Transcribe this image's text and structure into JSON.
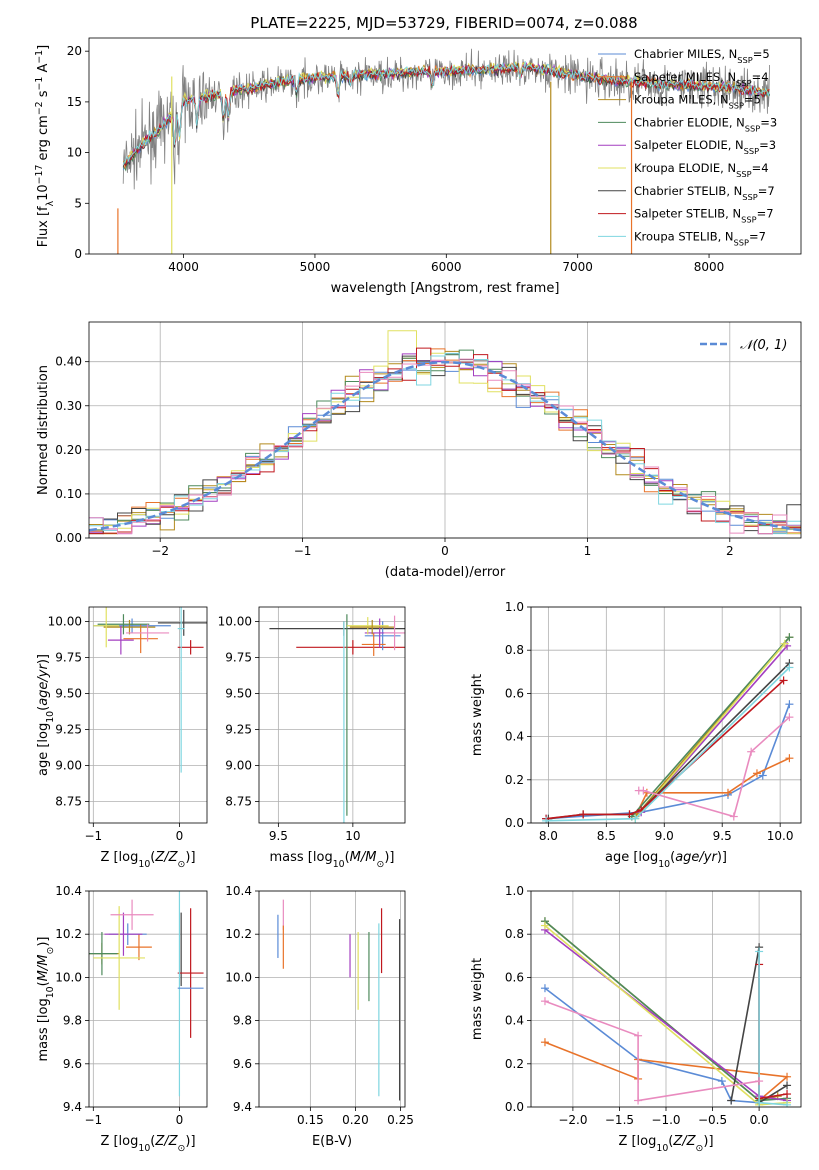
{
  "figure_title": "PLATE=2225, MJD=53729, FIBERID=0074, z=0.088",
  "chart_data": [
    {
      "id": "spectrum",
      "type": "line",
      "title": "PLATE=2225, MJD=53729, FIBERID=0074, z=0.088",
      "xlabel": "wavelength [Angstrom, rest frame]",
      "ylabel": "Flux [f_λ 10^-17 erg cm^-2 s^-1 A^-1]",
      "xlim": [
        3280,
        8700
      ],
      "ylim": [
        0,
        21.3
      ],
      "xticks": [
        4000,
        5000,
        6000,
        7000,
        8000
      ],
      "yticks": [
        0,
        5,
        10,
        15,
        20
      ],
      "grid": false,
      "legend_position": "right",
      "legend": [
        {
          "name": "Chabrier MILES, N_SSP=5",
          "color": "#5b8bd6"
        },
        {
          "name": "Salpeter MILES, N_SSP=4",
          "color": "#e8732a"
        },
        {
          "name": "Kroupa MILES, N_SSP=5",
          "color": "#b38b1e"
        },
        {
          "name": "Chabrier ELODIE, N_SSP=3",
          "color": "#4e8a5c"
        },
        {
          "name": "Salpeter ELODIE, N_SSP=3",
          "color": "#a33fc0"
        },
        {
          "name": "Kroupa ELODIE, N_SSP=4",
          "color": "#e0e060"
        },
        {
          "name": "Chabrier STELIB, N_SSP=7",
          "color": "#444444"
        },
        {
          "name": "Salpeter STELIB, N_SSP=7",
          "color": "#c0181e"
        },
        {
          "name": "Kroupa STELIB, N_SSP=7",
          "color": "#7fd6e0"
        }
      ],
      "data_color": "#808080",
      "continuum": [
        [
          3540,
          8.5
        ],
        [
          3600,
          9.5
        ],
        [
          3700,
          11.0
        ],
        [
          3800,
          12.0
        ],
        [
          3900,
          13.5
        ],
        [
          4000,
          15.0
        ],
        [
          4200,
          15.5
        ],
        [
          4400,
          16.0
        ],
        [
          4600,
          16.5
        ],
        [
          4800,
          17.0
        ],
        [
          5000,
          17.3
        ],
        [
          5400,
          17.6
        ],
        [
          5800,
          17.9
        ],
        [
          6200,
          18.0
        ],
        [
          6600,
          18.4
        ],
        [
          6800,
          18.0
        ],
        [
          7000,
          17.5
        ],
        [
          7400,
          16.9
        ],
        [
          7800,
          16.6
        ],
        [
          8200,
          16.3
        ],
        [
          8450,
          15.8
        ]
      ],
      "model_extra_lines": [
        {
          "color": "#e0e060",
          "x": 3910,
          "y": [
            0,
            17.5
          ]
        },
        {
          "color": "#b38b1e",
          "x": 6795,
          "y": [
            0,
            17.0
          ]
        },
        {
          "color": "#e8732a",
          "x": 7410,
          "y": [
            0,
            17.0
          ]
        },
        {
          "color": "#e8732a",
          "x": 3500,
          "y": [
            0,
            4.5
          ]
        }
      ]
    },
    {
      "id": "residuals",
      "type": "histogram",
      "xlabel": "(data-model)/error",
      "ylabel": "Normed distribution",
      "xlim": [
        -2.5,
        2.5
      ],
      "ylim": [
        0,
        0.49
      ],
      "xticks": [
        -2,
        -1,
        0,
        1,
        2
      ],
      "yticks": [
        0.0,
        0.1,
        0.2,
        0.3,
        0.4
      ],
      "grid": true,
      "legend_position": "top-right",
      "reference_curve": {
        "name": "𝒩(0, 1)",
        "color": "#5b8bd6"
      },
      "bin_width": 0.1,
      "series_colors": [
        "#5b8bd6",
        "#e8732a",
        "#b38b1e",
        "#4e8a5c",
        "#a33fc0",
        "#e0e060",
        "#444444",
        "#c0181e",
        "#7fd6e0",
        "#e98bbf"
      ]
    },
    {
      "id": "age-vs-Z",
      "type": "scatter",
      "xlabel": "Z [log10(Z/Z⊙)]",
      "ylabel": "age [log10(age/yr)]",
      "xlim": [
        -1.05,
        0.32
      ],
      "ylim": [
        8.6,
        10.1
      ],
      "xticks": [
        -1,
        0
      ],
      "yticks": [
        8.75,
        9.0,
        9.25,
        9.5,
        9.75,
        10.0
      ],
      "grid": true,
      "points": [
        {
          "color": "#5b8bd6",
          "x": -0.55,
          "y": 9.97,
          "xerr": 0.45,
          "yerr": 0.05
        },
        {
          "color": "#e8732a",
          "x": -0.45,
          "y": 9.88,
          "xerr": 0.2,
          "yerr": 0.1
        },
        {
          "color": "#b38b1e",
          "x": -0.58,
          "y": 9.96,
          "xerr": 0.3,
          "yerr": 0.05
        },
        {
          "color": "#4e8a5c",
          "x": -0.65,
          "y": 9.98,
          "xerr": 0.3,
          "yerr": 0.07
        },
        {
          "color": "#a33fc0",
          "x": -0.68,
          "y": 9.87,
          "xerr": 0.15,
          "yerr": 0.1
        },
        {
          "color": "#e0e060",
          "x": -0.85,
          "y": 9.97,
          "xerr": 0.15,
          "yerr": 0.15
        },
        {
          "color": "#444444",
          "x": 0.05,
          "y": 9.99,
          "xerr": 0.3,
          "yerr": 0.09
        },
        {
          "color": "#c0181e",
          "x": 0.13,
          "y": 9.82,
          "xerr": 0.15,
          "yerr": 0.05
        },
        {
          "color": "#7fd6e0",
          "x": 0.02,
          "y": 9.95,
          "xerr": 0.04,
          "yerr": 0.3
        },
        {
          "color": "#7fd6e0",
          "x": 0.02,
          "y": 9.3,
          "xerr": 0.0,
          "yerr": 0.35
        },
        {
          "color": "#e98bbf",
          "x": -0.37,
          "y": 9.92,
          "xerr": 0.25,
          "yerr": 0.06
        }
      ]
    },
    {
      "id": "age-vs-mass",
      "type": "scatter",
      "xlabel": "mass [log10(M/M⊙)]",
      "ylabel": "",
      "xlim": [
        9.37,
        10.35
      ],
      "ylim": [
        8.6,
        10.1
      ],
      "xticks": [
        9.5,
        10.0
      ],
      "yticks": [
        8.75,
        9.0,
        9.25,
        9.5,
        9.75,
        10.0
      ],
      "grid": true,
      "points": [
        {
          "color": "#444444",
          "x": 9.94,
          "y": 9.95,
          "xerr": 0.5,
          "yerr": 0.05
        },
        {
          "color": "#c0181e",
          "x": 10.0,
          "y": 9.82,
          "xerr": 0.38,
          "yerr": 0.05
        },
        {
          "color": "#4e8a5c",
          "x": 9.96,
          "y": 9.35,
          "xerr": 0.0,
          "yerr": 0.7
        },
        {
          "color": "#5b8bd6",
          "x": 10.2,
          "y": 9.9,
          "xerr": 0.12,
          "yerr": 0.1
        },
        {
          "color": "#e8732a",
          "x": 10.14,
          "y": 9.84,
          "xerr": 0.08,
          "yerr": 0.08
        },
        {
          "color": "#a33fc0",
          "x": 10.18,
          "y": 9.92,
          "xerr": 0.1,
          "yerr": 0.1
        },
        {
          "color": "#e0e060",
          "x": 10.1,
          "y": 9.97,
          "xerr": 0.14,
          "yerr": 0.06
        },
        {
          "color": "#b38b1e",
          "x": 10.13,
          "y": 9.96,
          "xerr": 0.15,
          "yerr": 0.05
        },
        {
          "color": "#e98bbf",
          "x": 10.28,
          "y": 9.92,
          "xerr": 0.07,
          "yerr": 0.12
        },
        {
          "color": "#7fd6e0",
          "x": 9.94,
          "y": 9.3,
          "xerr": 0.0,
          "yerr": 0.7
        }
      ]
    },
    {
      "id": "mass-weight-vs-age",
      "type": "line",
      "xlabel": "age [log10(age/yr)]",
      "ylabel": "mass weight",
      "xlim": [
        7.85,
        10.18
      ],
      "ylim": [
        0,
        1.0
      ],
      "xticks": [
        8.0,
        8.5,
        9.0,
        9.5,
        10.0
      ],
      "yticks": [
        0.0,
        0.2,
        0.4,
        0.6,
        0.8,
        1.0
      ],
      "grid": true,
      "series": [
        {
          "color": "#5b8bd6",
          "x": [
            7.98,
            8.8,
            9.55,
            9.85,
            10.08
          ],
          "y": [
            0.02,
            0.05,
            0.13,
            0.22,
            0.55
          ]
        },
        {
          "color": "#e8732a",
          "x": [
            8.75,
            8.85,
            9.55,
            9.8,
            10.08
          ],
          "y": [
            0.03,
            0.14,
            0.14,
            0.23,
            0.3
          ]
        },
        {
          "color": "#b38b1e",
          "x": [
            8.75,
            10.08
          ],
          "y": [
            0.03,
            0.86
          ]
        },
        {
          "color": "#4e8a5c",
          "x": [
            8.72,
            10.08
          ],
          "y": [
            0.03,
            0.86
          ]
        },
        {
          "color": "#a33fc0",
          "x": [
            8.8,
            10.06
          ],
          "y": [
            0.05,
            0.82
          ]
        },
        {
          "color": "#e0e060",
          "x": [
            8.75,
            10.04
          ],
          "y": [
            0.02,
            0.83
          ]
        },
        {
          "color": "#444444",
          "x": [
            8.0,
            8.3,
            8.7,
            8.8,
            10.08
          ],
          "y": [
            0.02,
            0.04,
            0.04,
            0.06,
            0.74
          ]
        },
        {
          "color": "#c0181e",
          "x": [
            7.98,
            8.3,
            8.7,
            8.8,
            10.03
          ],
          "y": [
            0.02,
            0.04,
            0.04,
            0.06,
            0.66
          ]
        },
        {
          "color": "#7fd6e0",
          "x": [
            7.98,
            8.75,
            10.08
          ],
          "y": [
            0.01,
            0.02,
            0.72
          ]
        },
        {
          "color": "#e98bbf",
          "x": [
            8.78,
            8.82,
            9.6,
            9.75,
            10.08
          ],
          "y": [
            0.15,
            0.15,
            0.03,
            0.33,
            0.49
          ]
        }
      ]
    },
    {
      "id": "mass-vs-Z",
      "type": "scatter",
      "xlabel": "Z [log10(Z/Z⊙)]",
      "ylabel": "mass [log10(M/M⊙)]",
      "xlim": [
        -1.05,
        0.32
      ],
      "ylim": [
        9.4,
        10.4
      ],
      "xticks": [
        -1,
        0
      ],
      "yticks": [
        9.4,
        9.6,
        9.8,
        10.0,
        10.2,
        10.4
      ],
      "grid": true,
      "points": [
        {
          "color": "#5b8bd6",
          "x": -0.6,
          "y": 10.2,
          "xerr": 0.22,
          "yerr": 0.05
        },
        {
          "color": "#e8732a",
          "x": -0.47,
          "y": 10.14,
          "xerr": 0.15,
          "yerr": 0.06
        },
        {
          "color": "#b38b1e",
          "x": -0.9,
          "y": 10.11,
          "xerr": 0.2,
          "yerr": 0.05
        },
        {
          "color": "#4e8a5c",
          "x": -0.9,
          "y": 10.11,
          "xerr": 0.18,
          "yerr": 0.1
        },
        {
          "color": "#a33fc0",
          "x": -0.65,
          "y": 10.2,
          "xerr": 0.22,
          "yerr": 0.1
        },
        {
          "color": "#e0e060",
          "x": -0.7,
          "y": 10.09,
          "xerr": 0.3,
          "yerr": 0.24
        },
        {
          "color": "#444444",
          "x": 0.02,
          "y": 10.13,
          "xerr": 0.0,
          "yerr": 0.17
        },
        {
          "color": "#c0181e",
          "x": 0.13,
          "y": 10.02,
          "xerr": 0.15,
          "yerr": 0.3
        },
        {
          "color": "#7fd6e0",
          "x": 0.0,
          "y": 9.95,
          "xerr": 0.0,
          "yerr": 0.5
        },
        {
          "color": "#5b8bd6",
          "x": 0.13,
          "y": 9.95,
          "xerr": 0.15,
          "yerr": 0.0
        },
        {
          "color": "#e98bbf",
          "x": -0.55,
          "y": 10.29,
          "xerr": 0.25,
          "yerr": 0.07
        }
      ]
    },
    {
      "id": "mass-vs-ebv",
      "type": "scatter",
      "xlabel": "E(B-V)",
      "ylabel": "",
      "xlim": [
        0.093,
        0.255
      ],
      "ylim": [
        9.4,
        10.4
      ],
      "xticks": [
        0.15,
        0.2,
        0.25
      ],
      "yticks": [
        9.4,
        9.6,
        9.8,
        10.0,
        10.2,
        10.4
      ],
      "grid": true,
      "points": [
        {
          "color": "#5b8bd6",
          "x": 0.114,
          "y": 10.19,
          "yerr": 0.1
        },
        {
          "color": "#e98bbf",
          "x": 0.12,
          "y": 10.29,
          "yerr": 0.07
        },
        {
          "color": "#e8732a",
          "x": 0.12,
          "y": 10.14,
          "yerr": 0.1
        },
        {
          "color": "#a33fc0",
          "x": 0.194,
          "y": 10.1,
          "yerr": 0.1
        },
        {
          "color": "#e0e060",
          "x": 0.203,
          "y": 10.03,
          "yerr": 0.18
        },
        {
          "color": "#4e8a5c",
          "x": 0.215,
          "y": 10.05,
          "yerr": 0.16
        },
        {
          "color": "#c0181e",
          "x": 0.229,
          "y": 10.17,
          "yerr": 0.15
        },
        {
          "color": "#7fd6e0",
          "x": 0.226,
          "y": 9.85,
          "yerr": 0.4
        },
        {
          "color": "#444444",
          "x": 0.249,
          "y": 9.85,
          "yerr": 0.42
        }
      ]
    },
    {
      "id": "mass-weight-vs-Z",
      "type": "line",
      "xlabel": "Z [log10(Z/Z⊙)]",
      "ylabel": "mass weight",
      "xlim": [
        -2.45,
        0.45
      ],
      "ylim": [
        0,
        1.0
      ],
      "xticks": [
        -2.0,
        -1.5,
        -1.0,
        -0.5,
        0.0
      ],
      "yticks": [
        0.0,
        0.2,
        0.4,
        0.6,
        0.8,
        1.0
      ],
      "grid": true,
      "series": [
        {
          "color": "#5b8bd6",
          "x": [
            -2.3,
            -1.3,
            -0.4,
            -0.3,
            0.0
          ],
          "y": [
            0.55,
            0.22,
            0.12,
            0.03,
            0.02
          ]
        },
        {
          "color": "#e8732a",
          "x": [
            -2.3,
            -1.3,
            -1.3,
            0.3,
            0.0
          ],
          "y": [
            0.3,
            0.13,
            0.22,
            0.14,
            0.03
          ]
        },
        {
          "color": "#b38b1e",
          "x": [
            -2.3,
            0.0,
            0.2
          ],
          "y": [
            0.86,
            0.03,
            0.05
          ]
        },
        {
          "color": "#4e8a5c",
          "x": [
            -2.3,
            0.0,
            0.3
          ],
          "y": [
            0.86,
            0.03,
            0.04
          ]
        },
        {
          "color": "#a33fc0",
          "x": [
            -2.3,
            0.0,
            0.3
          ],
          "y": [
            0.82,
            0.05,
            0.03
          ]
        },
        {
          "color": "#e0e060",
          "x": [
            -2.3,
            0.0,
            0.3
          ],
          "y": [
            0.84,
            0.01,
            0.02
          ]
        },
        {
          "color": "#444444",
          "x": [
            -0.3,
            0.0,
            0.0,
            0.3
          ],
          "y": [
            0.03,
            0.74,
            0.02,
            0.1
          ]
        },
        {
          "color": "#c0181e",
          "x": [
            0.0,
            0.0,
            0.3
          ],
          "y": [
            0.66,
            0.04,
            0.06
          ]
        },
        {
          "color": "#7fd6e0",
          "x": [
            0.0,
            0.0,
            0.3
          ],
          "y": [
            0.72,
            0.02,
            0.01
          ]
        },
        {
          "color": "#e98bbf",
          "x": [
            -2.3,
            -1.3,
            -1.3,
            0.0
          ],
          "y": [
            0.49,
            0.33,
            0.03,
            0.12
          ]
        }
      ]
    }
  ]
}
